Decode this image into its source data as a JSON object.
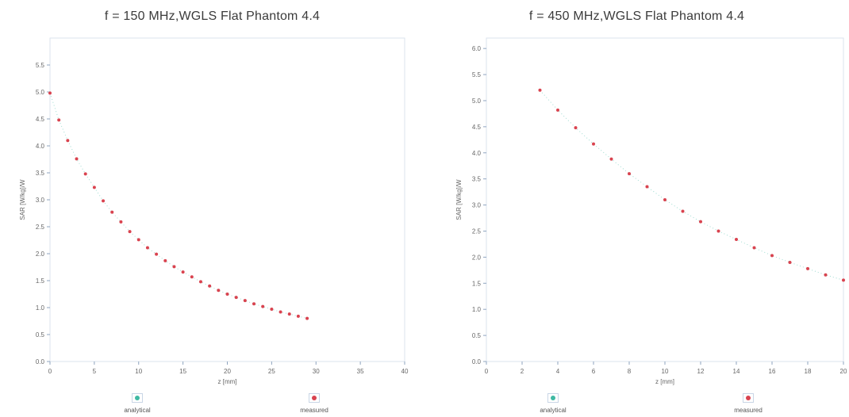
{
  "chart_data": [
    {
      "type": "scatter",
      "title": "f = 150 MHz,WGLS Flat Phantom 4.4",
      "xlabel": "z [mm]",
      "ylabel": "SAR [W/kg]/W",
      "xlim": [
        0,
        40
      ],
      "ylim": [
        0,
        6.0
      ],
      "xticks": [
        "0",
        "5",
        "10",
        "15",
        "20",
        "25",
        "30",
        "35",
        "40"
      ],
      "yticks": [
        "0.0",
        "0.5",
        "1.0",
        "1.5",
        "2.0",
        "2.5",
        "3.0",
        "3.5",
        "4.0",
        "4.5",
        "5.0",
        "5.5"
      ],
      "grid": false,
      "legend_position": "bottom",
      "series": [
        {
          "name": "analytical",
          "color": "#3fb9a3",
          "x": [
            0,
            1,
            2,
            3,
            4,
            5,
            6,
            7,
            8,
            9,
            10,
            11,
            12,
            13,
            14,
            15,
            16,
            17,
            18,
            19,
            20,
            21,
            22,
            23,
            24,
            25,
            26,
            27,
            28,
            29
          ],
          "y": [
            4.98,
            4.48,
            4.1,
            3.76,
            3.48,
            3.23,
            2.98,
            2.77,
            2.59,
            2.41,
            2.26,
            2.11,
            1.99,
            1.87,
            1.76,
            1.66,
            1.57,
            1.48,
            1.4,
            1.32,
            1.25,
            1.19,
            1.13,
            1.07,
            1.02,
            0.97,
            0.92,
            0.88,
            0.84,
            0.8
          ]
        },
        {
          "name": "measured",
          "color": "#d9434f",
          "x": [
            0,
            1,
            2,
            3,
            4,
            5,
            6,
            7,
            8,
            9,
            10,
            11,
            12,
            13,
            14,
            15,
            16,
            17,
            18,
            19,
            20,
            21,
            22,
            23,
            24,
            25,
            26,
            27,
            28,
            29
          ],
          "y": [
            4.98,
            4.48,
            4.1,
            3.76,
            3.48,
            3.23,
            2.98,
            2.77,
            2.59,
            2.41,
            2.26,
            2.11,
            1.99,
            1.87,
            1.76,
            1.66,
            1.57,
            1.48,
            1.4,
            1.32,
            1.25,
            1.19,
            1.13,
            1.07,
            1.02,
            0.97,
            0.92,
            0.88,
            0.84,
            0.8
          ]
        }
      ]
    },
    {
      "type": "scatter",
      "title": "f = 450 MHz,WGLS Flat Phantom 4.4",
      "xlabel": "z [mm]",
      "ylabel": "SAR [W/kg]/W",
      "xlim": [
        0,
        20
      ],
      "ylim": [
        0,
        6.2
      ],
      "xticks": [
        "0",
        "2",
        "4",
        "6",
        "8",
        "10",
        "12",
        "14",
        "16",
        "18",
        "20"
      ],
      "yticks": [
        "0.0",
        "0.5",
        "1.0",
        "1.5",
        "2.0",
        "2.5",
        "3.0",
        "3.5",
        "4.0",
        "4.5",
        "5.0",
        "5.5",
        "6.0"
      ],
      "grid": false,
      "legend_position": "bottom",
      "series": [
        {
          "name": "analytical",
          "color": "#3fb9a3",
          "x": [
            3,
            4,
            5,
            6,
            7,
            8,
            9,
            10,
            11,
            12,
            13,
            14,
            15,
            16,
            17,
            18,
            19,
            20
          ],
          "y": [
            5.2,
            4.82,
            4.48,
            4.17,
            3.88,
            3.6,
            3.35,
            3.1,
            2.88,
            2.68,
            2.5,
            2.34,
            2.18,
            2.03,
            1.9,
            1.78,
            1.66,
            1.56
          ]
        },
        {
          "name": "measured",
          "color": "#d9434f",
          "x": [
            3,
            4,
            5,
            6,
            7,
            8,
            9,
            10,
            11,
            12,
            13,
            14,
            15,
            16,
            17,
            18,
            19,
            20
          ],
          "y": [
            5.2,
            4.82,
            4.48,
            4.17,
            3.88,
            3.6,
            3.35,
            3.1,
            2.88,
            2.68,
            2.5,
            2.34,
            2.18,
            2.03,
            1.9,
            1.78,
            1.66,
            1.56
          ]
        }
      ]
    }
  ]
}
